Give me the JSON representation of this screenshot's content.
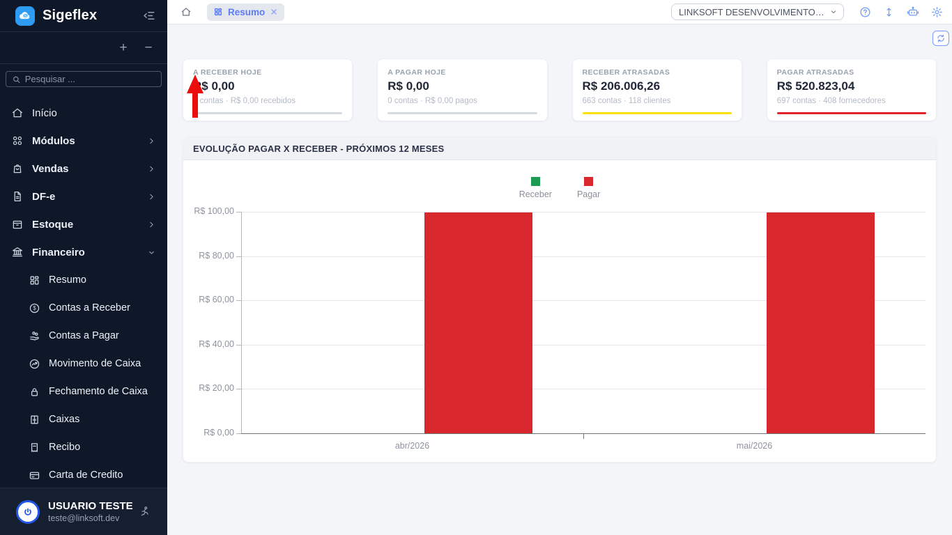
{
  "brand": {
    "name": "Sigeflex"
  },
  "sidebar": {
    "search_placeholder": "Pesquisar ...",
    "actions": {
      "add": "+",
      "remove": "−"
    },
    "items": [
      {
        "label": "Início",
        "icon": "home-icon"
      },
      {
        "label": "Módulos",
        "icon": "modules-icon"
      },
      {
        "label": "Vendas",
        "icon": "shopping-bag-icon"
      },
      {
        "label": "DF-e",
        "icon": "document-icon"
      },
      {
        "label": "Estoque",
        "icon": "box-icon"
      },
      {
        "label": "Financeiro",
        "icon": "bank-icon",
        "expanded": true
      }
    ],
    "financeiro_children": [
      "Resumo",
      "Contas a Receber",
      "Contas a Pagar",
      "Movimento de Caixa",
      "Fechamento de Caixa",
      "Caixas",
      "Recibo",
      "Carta de Credito"
    ],
    "user": {
      "name": "USUARIO TESTE",
      "email": "teste@linksoft.dev"
    }
  },
  "topbar": {
    "tab_label": "Resumo",
    "company_select": {
      "value": "LINKSOFT DESENVOLVIMENTO DE ..."
    },
    "icons": [
      "help-icon",
      "resize-vertical-icon",
      "assistant-robot-icon",
      "settings-gear-icon"
    ]
  },
  "cards": [
    {
      "title": "A RECEBER HOJE",
      "value": "R$ 0,00",
      "subtitle": "0 contas · R$ 0,00 recebidos",
      "bar_color": "#d6dbe2"
    },
    {
      "title": "A PAGAR HOJE",
      "value": "R$ 0,00",
      "subtitle": "0 contas · R$ 0,00 pagos",
      "bar_color": "#d6dbe2"
    },
    {
      "title": "RECEBER ATRASADAS",
      "value": "R$ 206.006,26",
      "subtitle": "663 contas · 118 clientes",
      "bar_color": "#ffe100"
    },
    {
      "title": "PAGAR ATRASADAS",
      "value": "R$ 520.823,04",
      "subtitle": "697 contas · 408 fornecedores",
      "bar_color": "#e42127"
    }
  ],
  "chart_panel": {
    "title": "EVOLUÇÃO PAGAR X RECEBER - PRÓXIMOS 12 MESES"
  },
  "chart_data": {
    "type": "bar",
    "title": "EVOLUÇÃO PAGAR X RECEBER - PRÓXIMOS 12 MESES",
    "categories": [
      "abr/2026",
      "mai/2026"
    ],
    "series": [
      {
        "name": "Receber",
        "color": "#1e9b52",
        "values": [
          0,
          0
        ]
      },
      {
        "name": "Pagar",
        "color": "#d9282d",
        "values": [
          99.6,
          99.6
        ]
      }
    ],
    "ylim": [
      0,
      100
    ],
    "yticks": {
      "values": [
        0,
        20,
        40,
        60,
        80,
        100
      ],
      "labels": [
        "R$ 0,00",
        "R$ 20,00",
        "R$ 40,00",
        "R$ 60,00",
        "R$ 80,00",
        "R$ 100,00"
      ]
    },
    "currency_prefix": "R$",
    "grid": true,
    "legend_position": "top"
  },
  "annotation": {
    "type": "arrow-up",
    "color": "#ed0c0c"
  }
}
